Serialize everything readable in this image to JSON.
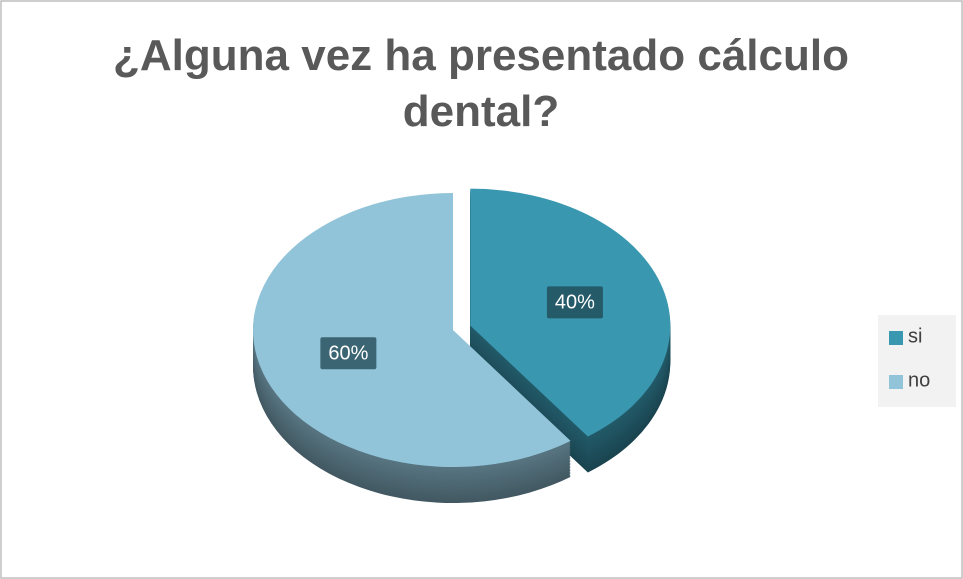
{
  "chart_data": {
    "type": "pie",
    "title": "¿Alguna vez ha presentado cálculo dental?",
    "categories": [
      "si",
      "no"
    ],
    "values": [
      40,
      60
    ],
    "value_labels": [
      "40%",
      "60%"
    ],
    "colors": [
      "#3a97b0",
      "#92c4d9"
    ],
    "legend": "right"
  }
}
